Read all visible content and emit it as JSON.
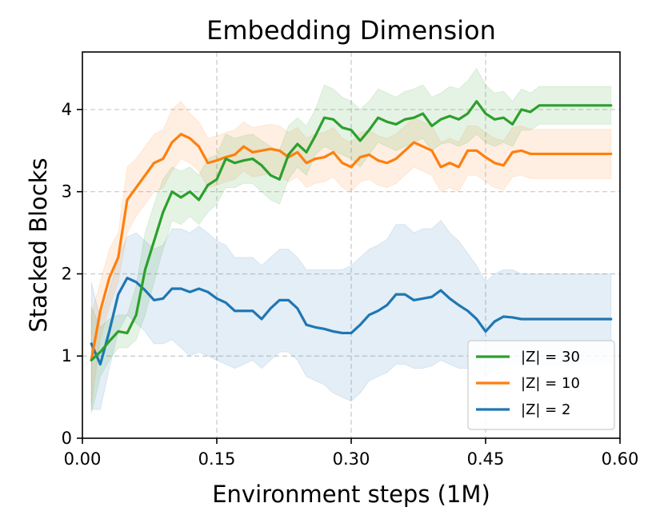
{
  "chart_data": {
    "type": "line",
    "title": "Embedding Dimension",
    "xlabel": "Environment steps (1M)",
    "ylabel": "Stacked Blocks",
    "xlim": [
      0.0,
      0.6
    ],
    "ylim": [
      0,
      4.7
    ],
    "xticks": [
      0.0,
      0.15,
      0.3,
      0.45,
      0.6
    ],
    "xtick_labels": [
      "0.00",
      "0.15",
      "0.30",
      "0.45",
      "0.60"
    ],
    "yticks": [
      0,
      1,
      2,
      3,
      4
    ],
    "ytick_labels": [
      "0",
      "1",
      "2",
      "3",
      "4"
    ],
    "grid": true,
    "legend_position": "lower-right",
    "x": [
      0.01,
      0.02,
      0.03,
      0.04,
      0.05,
      0.06,
      0.07,
      0.08,
      0.09,
      0.1,
      0.11,
      0.12,
      0.13,
      0.14,
      0.15,
      0.16,
      0.17,
      0.18,
      0.19,
      0.2,
      0.21,
      0.22,
      0.23,
      0.24,
      0.25,
      0.26,
      0.27,
      0.28,
      0.29,
      0.3,
      0.31,
      0.32,
      0.33,
      0.34,
      0.35,
      0.36,
      0.37,
      0.38,
      0.39,
      0.4,
      0.41,
      0.42,
      0.43,
      0.44,
      0.45,
      0.46,
      0.47,
      0.48,
      0.49,
      0.5,
      0.51,
      0.52,
      0.53,
      0.54,
      0.55,
      0.56,
      0.57,
      0.58,
      0.59
    ],
    "series": [
      {
        "name": "|Z| = 30",
        "color": "#2ca02c",
        "values": [
          0.95,
          1.05,
          1.18,
          1.3,
          1.28,
          1.5,
          2.05,
          2.4,
          2.75,
          3.0,
          2.93,
          3.0,
          2.9,
          3.08,
          3.15,
          3.4,
          3.35,
          3.38,
          3.4,
          3.32,
          3.2,
          3.15,
          3.45,
          3.58,
          3.48,
          3.68,
          3.9,
          3.88,
          3.78,
          3.75,
          3.62,
          3.75,
          3.9,
          3.85,
          3.82,
          3.88,
          3.9,
          3.95,
          3.8,
          3.88,
          3.92,
          3.88,
          3.95,
          4.1,
          3.95,
          3.88,
          3.9,
          3.82,
          4.0,
          3.97,
          4.05,
          4.05,
          4.05,
          4.05,
          4.05,
          4.05,
          4.05,
          4.05,
          4.05
        ],
        "lower": [
          0.3,
          0.75,
          0.95,
          1.1,
          1.1,
          1.2,
          1.5,
          1.9,
          2.3,
          2.65,
          2.6,
          2.7,
          2.6,
          2.75,
          2.85,
          3.05,
          3.05,
          3.1,
          3.1,
          3.0,
          2.9,
          2.85,
          3.15,
          3.3,
          3.2,
          3.45,
          3.55,
          3.5,
          3.45,
          3.4,
          3.3,
          3.45,
          3.6,
          3.55,
          3.5,
          3.55,
          3.6,
          3.65,
          3.5,
          3.58,
          3.6,
          3.55,
          3.6,
          3.7,
          3.6,
          3.55,
          3.6,
          3.55,
          3.75,
          3.75,
          3.82,
          3.82,
          3.82,
          3.82,
          3.82,
          3.82,
          3.82,
          3.82,
          3.82
        ],
        "upper": [
          1.6,
          1.35,
          1.45,
          1.5,
          1.5,
          1.85,
          2.5,
          2.85,
          3.15,
          3.3,
          3.25,
          3.3,
          3.2,
          3.4,
          3.45,
          3.7,
          3.65,
          3.68,
          3.7,
          3.62,
          3.55,
          3.5,
          3.8,
          3.9,
          3.8,
          4.0,
          4.3,
          4.25,
          4.15,
          4.1,
          4.0,
          4.1,
          4.25,
          4.2,
          4.15,
          4.22,
          4.25,
          4.3,
          4.15,
          4.2,
          4.28,
          4.25,
          4.35,
          4.5,
          4.3,
          4.2,
          4.22,
          4.1,
          4.25,
          4.2,
          4.28,
          4.28,
          4.28,
          4.28,
          4.28,
          4.28,
          4.28,
          4.28,
          4.28
        ]
      },
      {
        "name": "|Z| = 10",
        "color": "#ff7f0e",
        "values": [
          0.95,
          1.55,
          1.95,
          2.2,
          2.9,
          3.05,
          3.2,
          3.35,
          3.4,
          3.6,
          3.7,
          3.65,
          3.55,
          3.35,
          3.38,
          3.42,
          3.45,
          3.55,
          3.48,
          3.5,
          3.52,
          3.5,
          3.42,
          3.48,
          3.35,
          3.4,
          3.42,
          3.48,
          3.35,
          3.3,
          3.42,
          3.45,
          3.38,
          3.35,
          3.4,
          3.5,
          3.6,
          3.55,
          3.5,
          3.3,
          3.35,
          3.3,
          3.5,
          3.5,
          3.42,
          3.35,
          3.32,
          3.48,
          3.5,
          3.46,
          3.46,
          3.46,
          3.46,
          3.46,
          3.46,
          3.46,
          3.46,
          3.46,
          3.46
        ],
        "lower": [
          0.4,
          1.2,
          1.6,
          1.9,
          2.5,
          2.7,
          2.85,
          3.0,
          3.05,
          3.25,
          3.4,
          3.35,
          3.25,
          3.05,
          3.08,
          3.12,
          3.15,
          3.25,
          3.18,
          3.2,
          3.22,
          3.2,
          3.12,
          3.18,
          3.05,
          3.1,
          3.12,
          3.18,
          3.05,
          3.0,
          3.12,
          3.15,
          3.08,
          3.05,
          3.1,
          3.2,
          3.3,
          3.25,
          3.2,
          3.0,
          3.05,
          3.0,
          3.2,
          3.2,
          3.12,
          3.05,
          3.02,
          3.18,
          3.2,
          3.16,
          3.16,
          3.16,
          3.16,
          3.16,
          3.16,
          3.16,
          3.16,
          3.16,
          3.16
        ],
        "upper": [
          1.5,
          1.9,
          2.3,
          2.5,
          3.3,
          3.4,
          3.55,
          3.7,
          3.75,
          4.0,
          4.1,
          3.95,
          3.85,
          3.65,
          3.68,
          3.72,
          3.75,
          3.85,
          3.78,
          3.8,
          3.82,
          3.8,
          3.72,
          3.78,
          3.65,
          3.7,
          3.72,
          3.78,
          3.65,
          3.6,
          3.72,
          3.75,
          3.68,
          3.65,
          3.7,
          3.8,
          3.9,
          3.85,
          3.8,
          3.6,
          3.65,
          3.6,
          3.8,
          3.8,
          3.72,
          3.65,
          3.62,
          3.78,
          3.8,
          3.76,
          3.76,
          3.76,
          3.76,
          3.76,
          3.76,
          3.76,
          3.76,
          3.76,
          3.76
        ]
      },
      {
        "name": "|Z| = 2",
        "color": "#1f77b4",
        "values": [
          1.15,
          0.9,
          1.3,
          1.75,
          1.95,
          1.9,
          1.8,
          1.68,
          1.7,
          1.82,
          1.82,
          1.78,
          1.82,
          1.78,
          1.7,
          1.65,
          1.55,
          1.55,
          1.55,
          1.45,
          1.58,
          1.68,
          1.68,
          1.58,
          1.38,
          1.35,
          1.33,
          1.3,
          1.28,
          1.28,
          1.38,
          1.5,
          1.55,
          1.62,
          1.75,
          1.75,
          1.68,
          1.7,
          1.72,
          1.8,
          1.7,
          1.62,
          1.55,
          1.45,
          1.3,
          1.42,
          1.48,
          1.47,
          1.45,
          1.45,
          1.45,
          1.45,
          1.45,
          1.45,
          1.45,
          1.45,
          1.45,
          1.45,
          1.45
        ],
        "lower": [
          0.35,
          0.35,
          0.85,
          1.3,
          1.5,
          1.4,
          1.3,
          1.15,
          1.15,
          1.2,
          1.1,
          1.0,
          1.05,
          1.0,
          0.95,
          0.9,
          0.85,
          0.9,
          0.95,
          0.85,
          0.95,
          1.05,
          1.05,
          0.95,
          0.75,
          0.7,
          0.65,
          0.55,
          0.5,
          0.45,
          0.55,
          0.7,
          0.75,
          0.8,
          0.9,
          0.9,
          0.85,
          0.85,
          0.88,
          0.95,
          0.9,
          0.85,
          0.85,
          0.8,
          0.75,
          0.85,
          0.9,
          0.9,
          0.9,
          0.9,
          0.9,
          0.9,
          0.9,
          0.9,
          0.9,
          0.9,
          0.9,
          0.9,
          0.9
        ],
        "upper": [
          1.9,
          1.45,
          1.8,
          2.2,
          2.45,
          2.5,
          2.4,
          2.3,
          2.35,
          2.55,
          2.55,
          2.5,
          2.58,
          2.5,
          2.4,
          2.35,
          2.2,
          2.2,
          2.2,
          2.1,
          2.2,
          2.3,
          2.3,
          2.2,
          2.05,
          2.05,
          2.05,
          2.05,
          2.05,
          2.1,
          2.2,
          2.3,
          2.35,
          2.42,
          2.6,
          2.6,
          2.5,
          2.55,
          2.55,
          2.65,
          2.5,
          2.4,
          2.25,
          2.1,
          1.9,
          2.0,
          2.05,
          2.05,
          2.0,
          2.0,
          2.0,
          2.0,
          2.0,
          2.0,
          2.0,
          2.0,
          2.0,
          2.0,
          2.0
        ]
      }
    ]
  }
}
